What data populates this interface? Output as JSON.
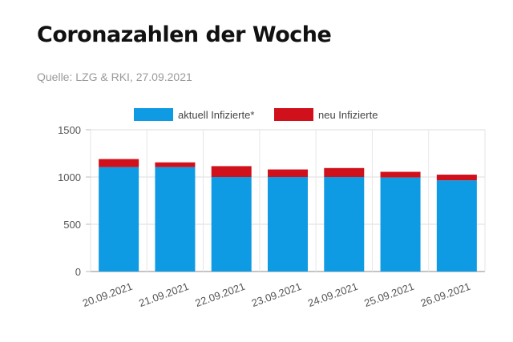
{
  "page": {
    "title": "Coronazahlen der Woche",
    "source": "Quelle: LZG & RKI, 27.09.2021"
  },
  "chart_data": {
    "type": "bar",
    "stacked": true,
    "categories": [
      "20.09.2021",
      "21.09.2021",
      "22.09.2021",
      "23.09.2021",
      "24.09.2021",
      "25.09.2021",
      "26.09.2021"
    ],
    "series": [
      {
        "name": "aktuell Infizierte*",
        "color": "#0f9be3",
        "values": [
          1105,
          1105,
          1000,
          1000,
          1000,
          995,
          965
        ]
      },
      {
        "name": "neu Infizierte",
        "color": "#d0111b",
        "values": [
          85,
          50,
          115,
          80,
          95,
          60,
          60
        ]
      }
    ],
    "ylim": [
      0,
      1500
    ],
    "yticks": [
      0,
      500,
      1000,
      1500
    ],
    "grid": true,
    "legend": "top-center"
  }
}
